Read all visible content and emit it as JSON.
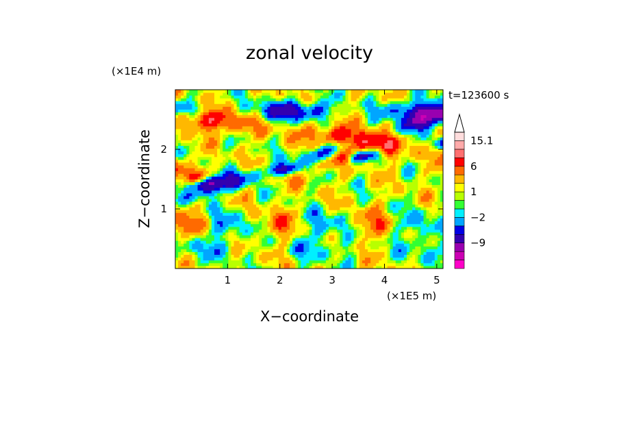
{
  "chart_data": {
    "type": "heatmap",
    "title": "zonal velocity",
    "xlabel": "X−coordinate",
    "ylabel": "Z−coordinate",
    "x_unit_label": "(×1E5 m)",
    "y_unit_label": "(×1E4 m)",
    "time_label": "t=123600 s",
    "xlim": [
      0,
      5.12
    ],
    "ylim": [
      0,
      3.0
    ],
    "x_ticks": [
      "1",
      "2",
      "3",
      "4",
      "5"
    ],
    "y_ticks": [
      "1",
      "2"
    ],
    "colorbar": {
      "levels": [
        -15,
        -12,
        -9,
        -6,
        -4,
        -2,
        -1,
        0,
        1,
        2,
        4,
        6,
        9,
        12,
        15.1
      ],
      "colors": [
        "#ff00c8",
        "#cc00b4",
        "#9900b0",
        "#3300b0",
        "#0000e6",
        "#00a6ff",
        "#00f0ff",
        "#33ff33",
        "#b8ff00",
        "#ffff00",
        "#ffb800",
        "#ff6a00",
        "#ff0000",
        "#ff7070",
        "#ffaaaa",
        "#ffdddd"
      ],
      "tick_labels": [
        {
          "label": "15.1",
          "value": 15.1
        },
        {
          "label": "6",
          "value": 6
        },
        {
          "label": "1",
          "value": 1
        },
        {
          "label": "−2",
          "value": -2
        },
        {
          "label": "−9",
          "value": -9
        }
      ],
      "extend": "max"
    }
  }
}
